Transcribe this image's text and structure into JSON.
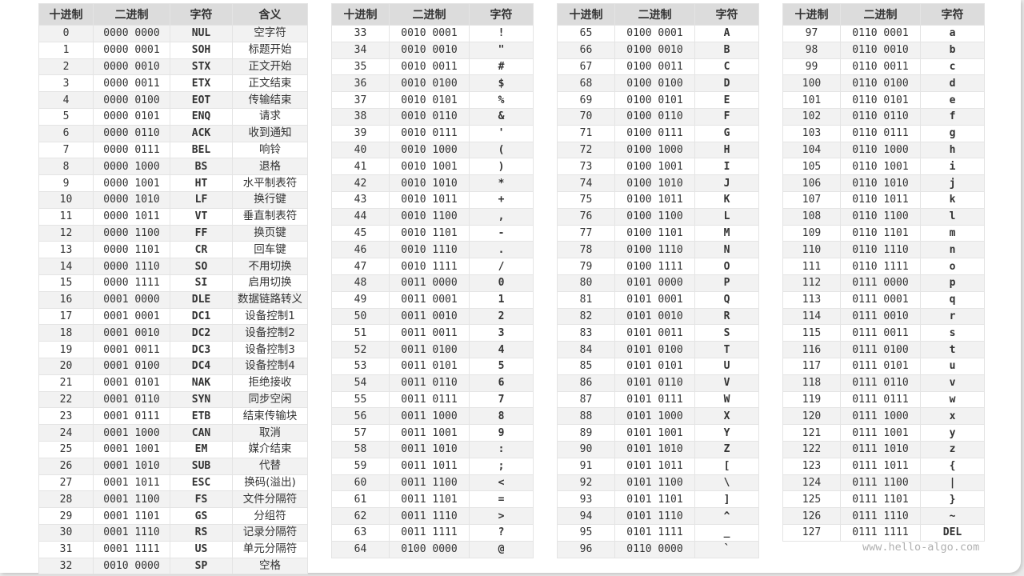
{
  "headers": {
    "dec": "十进制",
    "bin": "二进制",
    "char": "字符",
    "meaning": "含义"
  },
  "watermark": "www.hello-algo.com",
  "tables": [
    {
      "has_meaning": true,
      "rows": [
        [
          "0",
          "0000 0000",
          "NUL",
          "空字符"
        ],
        [
          "1",
          "0000 0001",
          "SOH",
          "标题开始"
        ],
        [
          "2",
          "0000 0010",
          "STX",
          "正文开始"
        ],
        [
          "3",
          "0000 0011",
          "ETX",
          "正文结束"
        ],
        [
          "4",
          "0000 0100",
          "EOT",
          "传输结束"
        ],
        [
          "5",
          "0000 0101",
          "ENQ",
          "请求"
        ],
        [
          "6",
          "0000 0110",
          "ACK",
          "收到通知"
        ],
        [
          "7",
          "0000 0111",
          "BEL",
          "响铃"
        ],
        [
          "8",
          "0000 1000",
          "BS",
          "退格"
        ],
        [
          "9",
          "0000 1001",
          "HT",
          "水平制表符"
        ],
        [
          "10",
          "0000 1010",
          "LF",
          "换行键"
        ],
        [
          "11",
          "0000 1011",
          "VT",
          "垂直制表符"
        ],
        [
          "12",
          "0000 1100",
          "FF",
          "换页键"
        ],
        [
          "13",
          "0000 1101",
          "CR",
          "回车键"
        ],
        [
          "14",
          "0000 1110",
          "SO",
          "不用切换"
        ],
        [
          "15",
          "0000 1111",
          "SI",
          "启用切换"
        ],
        [
          "16",
          "0001 0000",
          "DLE",
          "数据链路转义"
        ],
        [
          "17",
          "0001 0001",
          "DC1",
          "设备控制1"
        ],
        [
          "18",
          "0001 0010",
          "DC2",
          "设备控制2"
        ],
        [
          "19",
          "0001 0011",
          "DC3",
          "设备控制3"
        ],
        [
          "20",
          "0001 0100",
          "DC4",
          "设备控制4"
        ],
        [
          "21",
          "0001 0101",
          "NAK",
          "拒绝接收"
        ],
        [
          "22",
          "0001 0110",
          "SYN",
          "同步空闲"
        ],
        [
          "23",
          "0001 0111",
          "ETB",
          "结束传输块"
        ],
        [
          "24",
          "0001 1000",
          "CAN",
          "取消"
        ],
        [
          "25",
          "0001 1001",
          "EM",
          "媒介结束"
        ],
        [
          "26",
          "0001 1010",
          "SUB",
          "代替"
        ],
        [
          "27",
          "0001 1011",
          "ESC",
          "换码(溢出)"
        ],
        [
          "28",
          "0001 1100",
          "FS",
          "文件分隔符"
        ],
        [
          "29",
          "0001 1101",
          "GS",
          "分组符"
        ],
        [
          "30",
          "0001 1110",
          "RS",
          "记录分隔符"
        ],
        [
          "31",
          "0001 1111",
          "US",
          "单元分隔符"
        ],
        [
          "32",
          "0010 0000",
          "SP",
          "空格"
        ]
      ]
    },
    {
      "has_meaning": false,
      "rows": [
        [
          "33",
          "0010 0001",
          "!"
        ],
        [
          "34",
          "0010 0010",
          "\""
        ],
        [
          "35",
          "0010 0011",
          "#"
        ],
        [
          "36",
          "0010 0100",
          "$"
        ],
        [
          "37",
          "0010 0101",
          "%"
        ],
        [
          "38",
          "0010 0110",
          "&"
        ],
        [
          "39",
          "0010 0111",
          "'"
        ],
        [
          "40",
          "0010 1000",
          "("
        ],
        [
          "41",
          "0010 1001",
          ")"
        ],
        [
          "42",
          "0010 1010",
          "*"
        ],
        [
          "43",
          "0010 1011",
          "+"
        ],
        [
          "44",
          "0010 1100",
          ","
        ],
        [
          "45",
          "0010 1101",
          "-"
        ],
        [
          "46",
          "0010 1110",
          "."
        ],
        [
          "47",
          "0010 1111",
          "/"
        ],
        [
          "48",
          "0011 0000",
          "0"
        ],
        [
          "49",
          "0011 0001",
          "1"
        ],
        [
          "50",
          "0011 0010",
          "2"
        ],
        [
          "51",
          "0011 0011",
          "3"
        ],
        [
          "52",
          "0011 0100",
          "4"
        ],
        [
          "53",
          "0011 0101",
          "5"
        ],
        [
          "54",
          "0011 0110",
          "6"
        ],
        [
          "55",
          "0011 0111",
          "7"
        ],
        [
          "56",
          "0011 1000",
          "8"
        ],
        [
          "57",
          "0011 1001",
          "9"
        ],
        [
          "58",
          "0011 1010",
          ":"
        ],
        [
          "59",
          "0011 1011",
          ";"
        ],
        [
          "60",
          "0011 1100",
          "<"
        ],
        [
          "61",
          "0011 1101",
          "="
        ],
        [
          "62",
          "0011 1110",
          ">"
        ],
        [
          "63",
          "0011 1111",
          "?"
        ],
        [
          "64",
          "0100 0000",
          "@"
        ]
      ]
    },
    {
      "has_meaning": false,
      "rows": [
        [
          "65",
          "0100 0001",
          "A"
        ],
        [
          "66",
          "0100 0010",
          "B"
        ],
        [
          "67",
          "0100 0011",
          "C"
        ],
        [
          "68",
          "0100 0100",
          "D"
        ],
        [
          "69",
          "0100 0101",
          "E"
        ],
        [
          "70",
          "0100 0110",
          "F"
        ],
        [
          "71",
          "0100 0111",
          "G"
        ],
        [
          "72",
          "0100 1000",
          "H"
        ],
        [
          "73",
          "0100 1001",
          "I"
        ],
        [
          "74",
          "0100 1010",
          "J"
        ],
        [
          "75",
          "0100 1011",
          "K"
        ],
        [
          "76",
          "0100 1100",
          "L"
        ],
        [
          "77",
          "0100 1101",
          "M"
        ],
        [
          "78",
          "0100 1110",
          "N"
        ],
        [
          "79",
          "0100 1111",
          "O"
        ],
        [
          "80",
          "0101 0000",
          "P"
        ],
        [
          "81",
          "0101 0001",
          "Q"
        ],
        [
          "82",
          "0101 0010",
          "R"
        ],
        [
          "83",
          "0101 0011",
          "S"
        ],
        [
          "84",
          "0101 0100",
          "T"
        ],
        [
          "85",
          "0101 0101",
          "U"
        ],
        [
          "86",
          "0101 0110",
          "V"
        ],
        [
          "87",
          "0101 0111",
          "W"
        ],
        [
          "88",
          "0101 1000",
          "X"
        ],
        [
          "89",
          "0101 1001",
          "Y"
        ],
        [
          "90",
          "0101 1010",
          "Z"
        ],
        [
          "91",
          "0101 1011",
          "["
        ],
        [
          "92",
          "0101 1100",
          "\\"
        ],
        [
          "93",
          "0101 1101",
          "]"
        ],
        [
          "94",
          "0101 1110",
          "^"
        ],
        [
          "95",
          "0101 1111",
          "_"
        ],
        [
          "96",
          "0110 0000",
          "`"
        ]
      ]
    },
    {
      "has_meaning": false,
      "rows": [
        [
          "97",
          "0110 0001",
          "a"
        ],
        [
          "98",
          "0110 0010",
          "b"
        ],
        [
          "99",
          "0110 0011",
          "c"
        ],
        [
          "100",
          "0110 0100",
          "d"
        ],
        [
          "101",
          "0110 0101",
          "e"
        ],
        [
          "102",
          "0110 0110",
          "f"
        ],
        [
          "103",
          "0110 0111",
          "g"
        ],
        [
          "104",
          "0110 1000",
          "h"
        ],
        [
          "105",
          "0110 1001",
          "i"
        ],
        [
          "106",
          "0110 1010",
          "j"
        ],
        [
          "107",
          "0110 1011",
          "k"
        ],
        [
          "108",
          "0110 1100",
          "l"
        ],
        [
          "109",
          "0110 1101",
          "m"
        ],
        [
          "110",
          "0110 1110",
          "n"
        ],
        [
          "111",
          "0110 1111",
          "o"
        ],
        [
          "112",
          "0111 0000",
          "p"
        ],
        [
          "113",
          "0111 0001",
          "q"
        ],
        [
          "114",
          "0111 0010",
          "r"
        ],
        [
          "115",
          "0111 0011",
          "s"
        ],
        [
          "116",
          "0111 0100",
          "t"
        ],
        [
          "117",
          "0111 0101",
          "u"
        ],
        [
          "118",
          "0111 0110",
          "v"
        ],
        [
          "119",
          "0111 0111",
          "w"
        ],
        [
          "120",
          "0111 1000",
          "x"
        ],
        [
          "121",
          "0111 1001",
          "y"
        ],
        [
          "122",
          "0111 1010",
          "z"
        ],
        [
          "123",
          "0111 1011",
          "{"
        ],
        [
          "124",
          "0111 1100",
          "|"
        ],
        [
          "125",
          "0111 1101",
          "}"
        ],
        [
          "126",
          "0111 1110",
          "~"
        ],
        [
          "127",
          "0111 1111",
          "DEL"
        ]
      ]
    }
  ]
}
